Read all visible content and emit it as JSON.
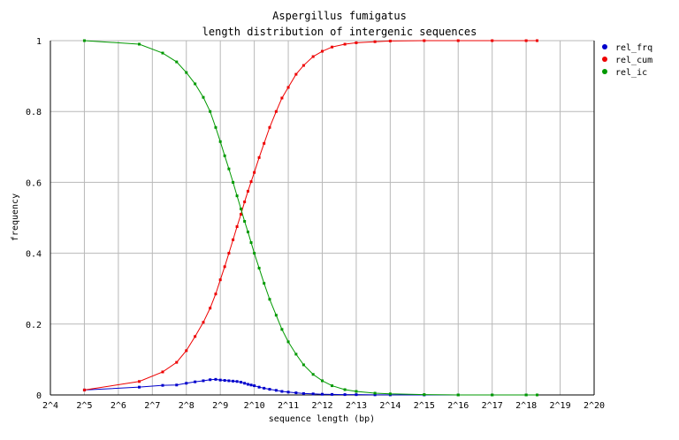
{
  "chart_data": {
    "type": "line",
    "title": "Aspergillus fumigatus",
    "subtitle": "length distribution of intergenic sequences",
    "xlabel": "sequence length (bp)",
    "ylabel": "frequency",
    "x_scale": "log2",
    "xlim": [
      16,
      1048576
    ],
    "ylim": [
      0,
      1
    ],
    "x_ticks": [
      {
        "value": 16,
        "label": "2^4"
      },
      {
        "value": 32,
        "label": "2^5"
      },
      {
        "value": 64,
        "label": "2^6"
      },
      {
        "value": 128,
        "label": "2^7"
      },
      {
        "value": 256,
        "label": "2^8"
      },
      {
        "value": 512,
        "label": "2^9"
      },
      {
        "value": 1024,
        "label": "2^10"
      },
      {
        "value": 2048,
        "label": "2^11"
      },
      {
        "value": 4096,
        "label": "2^12"
      },
      {
        "value": 8192,
        "label": "2^13"
      },
      {
        "value": 16384,
        "label": "2^14"
      },
      {
        "value": 32768,
        "label": "2^15"
      },
      {
        "value": 65536,
        "label": "2^16"
      },
      {
        "value": 131072,
        "label": "2^17"
      },
      {
        "value": 262144,
        "label": "2^18"
      },
      {
        "value": 524288,
        "label": "2^19"
      },
      {
        "value": 1048576,
        "label": "2^20"
      }
    ],
    "y_ticks": [
      {
        "value": 0,
        "label": "0"
      },
      {
        "value": 0.2,
        "label": "0.2"
      },
      {
        "value": 0.4,
        "label": "0.4"
      },
      {
        "value": 0.6,
        "label": "0.6"
      },
      {
        "value": 0.8,
        "label": "0.8"
      },
      {
        "value": 1,
        "label": "1"
      }
    ],
    "grid": true,
    "legend_position": "top-right, outside plot",
    "series": [
      {
        "name": "rel_frq",
        "color": "#0000cc",
        "points": [
          [
            32,
            0.014
          ],
          [
            98,
            0.022
          ],
          [
            158,
            0.027
          ],
          [
            210,
            0.028
          ],
          [
            256,
            0.033
          ],
          [
            306,
            0.037
          ],
          [
            362,
            0.04
          ],
          [
            416,
            0.043
          ],
          [
            466,
            0.044
          ],
          [
            512,
            0.042
          ],
          [
            560,
            0.041
          ],
          [
            610,
            0.04
          ],
          [
            664,
            0.039
          ],
          [
            720,
            0.038
          ],
          [
            780,
            0.036
          ],
          [
            840,
            0.033
          ],
          [
            900,
            0.03
          ],
          [
            960,
            0.028
          ],
          [
            1024,
            0.026
          ],
          [
            1130,
            0.022
          ],
          [
            1250,
            0.019
          ],
          [
            1400,
            0.016
          ],
          [
            1600,
            0.013
          ],
          [
            1800,
            0.01
          ],
          [
            2048,
            0.008
          ],
          [
            2400,
            0.006
          ],
          [
            2800,
            0.004
          ],
          [
            3400,
            0.003
          ],
          [
            4096,
            0.002
          ],
          [
            5000,
            0.0015
          ],
          [
            6500,
            0.001
          ],
          [
            8192,
            0.0008
          ],
          [
            12000,
            0.0004
          ],
          [
            16384,
            0.0002
          ],
          [
            32768,
            0.0001
          ],
          [
            65536,
            0
          ],
          [
            131072,
            0
          ],
          [
            262144,
            0
          ],
          [
            327680,
            0
          ]
        ]
      },
      {
        "name": "rel_cum",
        "color": "#ee0000",
        "points": [
          [
            32,
            0.014
          ],
          [
            98,
            0.038
          ],
          [
            158,
            0.065
          ],
          [
            210,
            0.092
          ],
          [
            256,
            0.125
          ],
          [
            306,
            0.165
          ],
          [
            362,
            0.205
          ],
          [
            416,
            0.245
          ],
          [
            466,
            0.285
          ],
          [
            512,
            0.325
          ],
          [
            560,
            0.362
          ],
          [
            610,
            0.4
          ],
          [
            664,
            0.438
          ],
          [
            720,
            0.475
          ],
          [
            780,
            0.51
          ],
          [
            840,
            0.545
          ],
          [
            900,
            0.575
          ],
          [
            960,
            0.602
          ],
          [
            1024,
            0.628
          ],
          [
            1130,
            0.67
          ],
          [
            1250,
            0.71
          ],
          [
            1400,
            0.755
          ],
          [
            1600,
            0.8
          ],
          [
            1800,
            0.838
          ],
          [
            2048,
            0.868
          ],
          [
            2400,
            0.905
          ],
          [
            2800,
            0.93
          ],
          [
            3400,
            0.955
          ],
          [
            4096,
            0.97
          ],
          [
            5000,
            0.982
          ],
          [
            6500,
            0.99
          ],
          [
            8192,
            0.994
          ],
          [
            12000,
            0.997
          ],
          [
            16384,
            0.999
          ],
          [
            32768,
            1.0
          ],
          [
            65536,
            1.0
          ],
          [
            131072,
            1.0
          ],
          [
            262144,
            1.0
          ],
          [
            327680,
            1.0
          ]
        ]
      },
      {
        "name": "rel_ic",
        "color": "#009900",
        "points": [
          [
            32,
            1.0
          ],
          [
            98,
            0.99
          ],
          [
            158,
            0.965
          ],
          [
            210,
            0.94
          ],
          [
            256,
            0.91
          ],
          [
            306,
            0.878
          ],
          [
            362,
            0.84
          ],
          [
            416,
            0.8
          ],
          [
            466,
            0.755
          ],
          [
            512,
            0.715
          ],
          [
            560,
            0.675
          ],
          [
            610,
            0.638
          ],
          [
            664,
            0.6
          ],
          [
            720,
            0.562
          ],
          [
            780,
            0.525
          ],
          [
            840,
            0.49
          ],
          [
            900,
            0.46
          ],
          [
            960,
            0.43
          ],
          [
            1024,
            0.4
          ],
          [
            1130,
            0.358
          ],
          [
            1250,
            0.315
          ],
          [
            1400,
            0.27
          ],
          [
            1600,
            0.225
          ],
          [
            1800,
            0.185
          ],
          [
            2048,
            0.15
          ],
          [
            2400,
            0.115
          ],
          [
            2800,
            0.085
          ],
          [
            3400,
            0.058
          ],
          [
            4096,
            0.04
          ],
          [
            5000,
            0.026
          ],
          [
            6500,
            0.015
          ],
          [
            8192,
            0.01
          ],
          [
            12000,
            0.005
          ],
          [
            16384,
            0.003
          ],
          [
            32768,
            0.001
          ],
          [
            65536,
            0
          ],
          [
            131072,
            0
          ],
          [
            262144,
            0
          ],
          [
            327680,
            0
          ]
        ]
      }
    ]
  }
}
